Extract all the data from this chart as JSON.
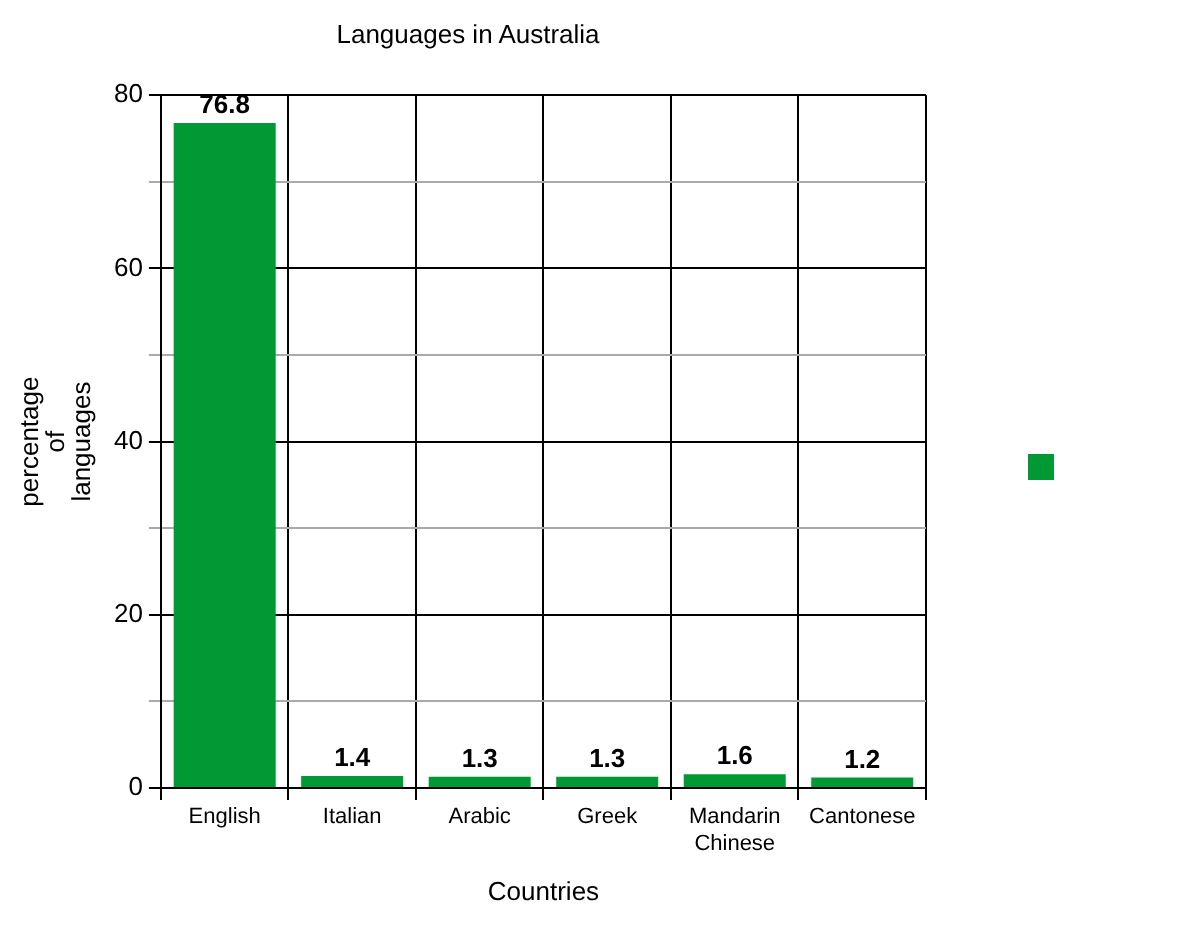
{
  "chart_data": {
    "type": "bar",
    "title": "Languages in Australia",
    "xlabel": "Countries",
    "ylabel": "percentage of languages",
    "categories": [
      "English",
      "Italian",
      "Arabic",
      "Greek",
      "Mandarin Chinese",
      "Cantonese"
    ],
    "series": [
      {
        "color": "#009933",
        "values": [
          76.8,
          1.4,
          1.3,
          1.3,
          1.6,
          1.2
        ]
      }
    ],
    "ylim": [
      0,
      80
    ],
    "yticks": [
      0,
      {
        "value": 10,
        "label": null
      },
      20,
      {
        "value": 30,
        "label": null
      },
      40,
      {
        "value": 50,
        "label": null
      },
      60,
      {
        "value": 70,
        "label": null
      },
      80
    ],
    "grid": true,
    "data_labels": true
  }
}
